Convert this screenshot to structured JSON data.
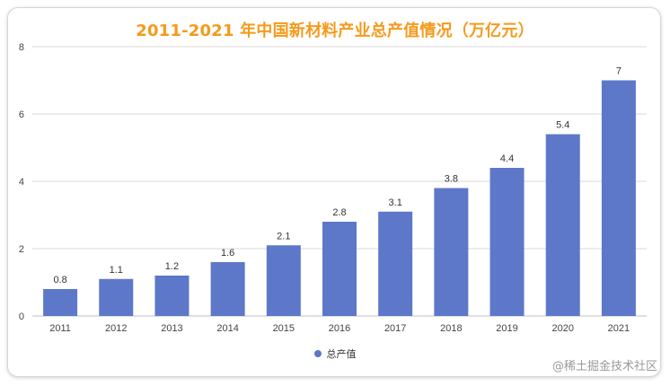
{
  "chart_data": {
    "type": "bar",
    "title": "2011-2021 年中国新材料产业总产值情况（万亿元）",
    "categories": [
      "2011",
      "2012",
      "2013",
      "2014",
      "2015",
      "2016",
      "2017",
      "2018",
      "2019",
      "2020",
      "2021"
    ],
    "series": [
      {
        "name": "总产值",
        "values": [
          0.8,
          1.1,
          1.2,
          1.6,
          2.1,
          2.8,
          3.1,
          3.8,
          4.4,
          5.4,
          7
        ],
        "value_labels": [
          "0.8",
          "1.1",
          "1.2",
          "1.6",
          "2.1",
          "2.8",
          "3.1",
          "3.8",
          "4.4",
          "5.4",
          "7"
        ]
      }
    ],
    "xlabel": "",
    "ylabel": "",
    "ylim": [
      0,
      8
    ],
    "yticks": [
      0,
      2,
      4,
      6,
      8
    ],
    "ytick_labels": [
      "0",
      "2",
      "4",
      "6",
      "8"
    ],
    "grid": true,
    "legend_position": "bottom-center"
  },
  "colors": {
    "bar": "#5d78c8",
    "title": "#f59a1b",
    "grid": "#d9d9d9"
  },
  "watermark": "@稀土掘金技术社区"
}
